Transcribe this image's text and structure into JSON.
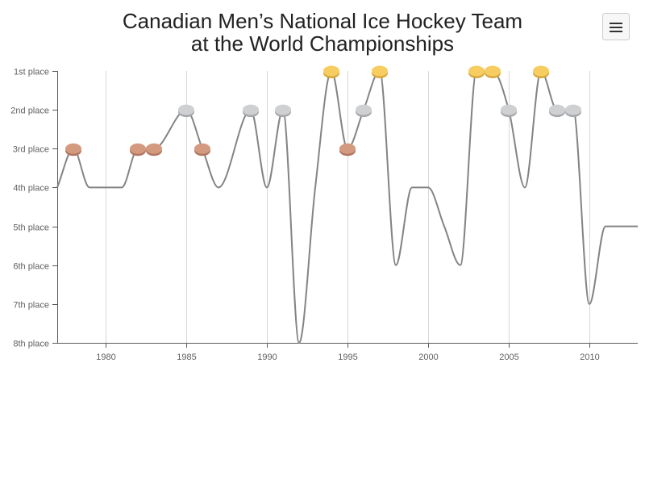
{
  "header": {
    "title_line1": "Canadian Men’s National Ice Hockey Team",
    "title_line2": "at the World Championships",
    "menu_icon": "hamburger-menu-icon"
  },
  "chart_data": {
    "type": "line",
    "title": "Canadian Men’s National Ice Hockey Team at the World Championships",
    "xlabel": "",
    "ylabel": "",
    "x_ticks": [
      1980,
      1985,
      1990,
      1995,
      2000,
      2005,
      2010
    ],
    "xlim": [
      1977,
      2013
    ],
    "y_ticks": [
      "1st place",
      "2nd place",
      "3rd place",
      "4th place",
      "5th place",
      "6th place",
      "7th place",
      "8th place"
    ],
    "ylim": [
      1,
      8
    ],
    "y_reversed": true,
    "grid": "vertical",
    "series": [
      {
        "x": [
          1977,
          1978,
          1979,
          1980,
          1981,
          1982,
          1983,
          1985,
          1986,
          1987,
          1989,
          1990,
          1991,
          1992,
          1993,
          1994,
          1995,
          1996,
          1997,
          1998,
          1999,
          2000,
          2001,
          2002,
          2003,
          2004,
          2005,
          2006,
          2007,
          2008,
          2009,
          2010,
          2011,
          2012,
          2013
        ],
        "values": [
          4,
          3,
          4,
          4,
          4,
          3,
          3,
          2,
          3,
          4,
          2,
          4,
          2,
          8,
          4,
          1,
          3,
          2,
          1,
          6,
          4,
          4,
          5,
          6,
          1,
          1,
          2,
          4,
          1,
          2,
          2,
          7,
          5,
          5,
          5
        ]
      }
    ],
    "medals": [
      {
        "year": 1978,
        "place": 3,
        "medal": "bronze"
      },
      {
        "year": 1982,
        "place": 3,
        "medal": "bronze"
      },
      {
        "year": 1983,
        "place": 3,
        "medal": "bronze"
      },
      {
        "year": 1985,
        "place": 2,
        "medal": "silver"
      },
      {
        "year": 1986,
        "place": 3,
        "medal": "bronze"
      },
      {
        "year": 1989,
        "place": 2,
        "medal": "silver"
      },
      {
        "year": 1991,
        "place": 2,
        "medal": "silver"
      },
      {
        "year": 1994,
        "place": 1,
        "medal": "gold"
      },
      {
        "year": 1995,
        "place": 3,
        "medal": "bronze"
      },
      {
        "year": 1996,
        "place": 2,
        "medal": "silver"
      },
      {
        "year": 1997,
        "place": 1,
        "medal": "gold"
      },
      {
        "year": 2003,
        "place": 1,
        "medal": "gold"
      },
      {
        "year": 2004,
        "place": 1,
        "medal": "gold"
      },
      {
        "year": 2005,
        "place": 2,
        "medal": "silver"
      },
      {
        "year": 2007,
        "place": 1,
        "medal": "gold"
      },
      {
        "year": 2008,
        "place": 2,
        "medal": "silver"
      },
      {
        "year": 2009,
        "place": 2,
        "medal": "silver"
      }
    ],
    "colors": {
      "line": "#848484",
      "grid": "#d8d8d8",
      "axis": "#5a5a5a",
      "gold": "#f7cd62",
      "gold_edge": "#d7a73c",
      "silver": "#cfd0d2",
      "silver_edge": "#a6a7aa",
      "bronze": "#d49a80",
      "bronze_edge": "#b07560"
    }
  }
}
